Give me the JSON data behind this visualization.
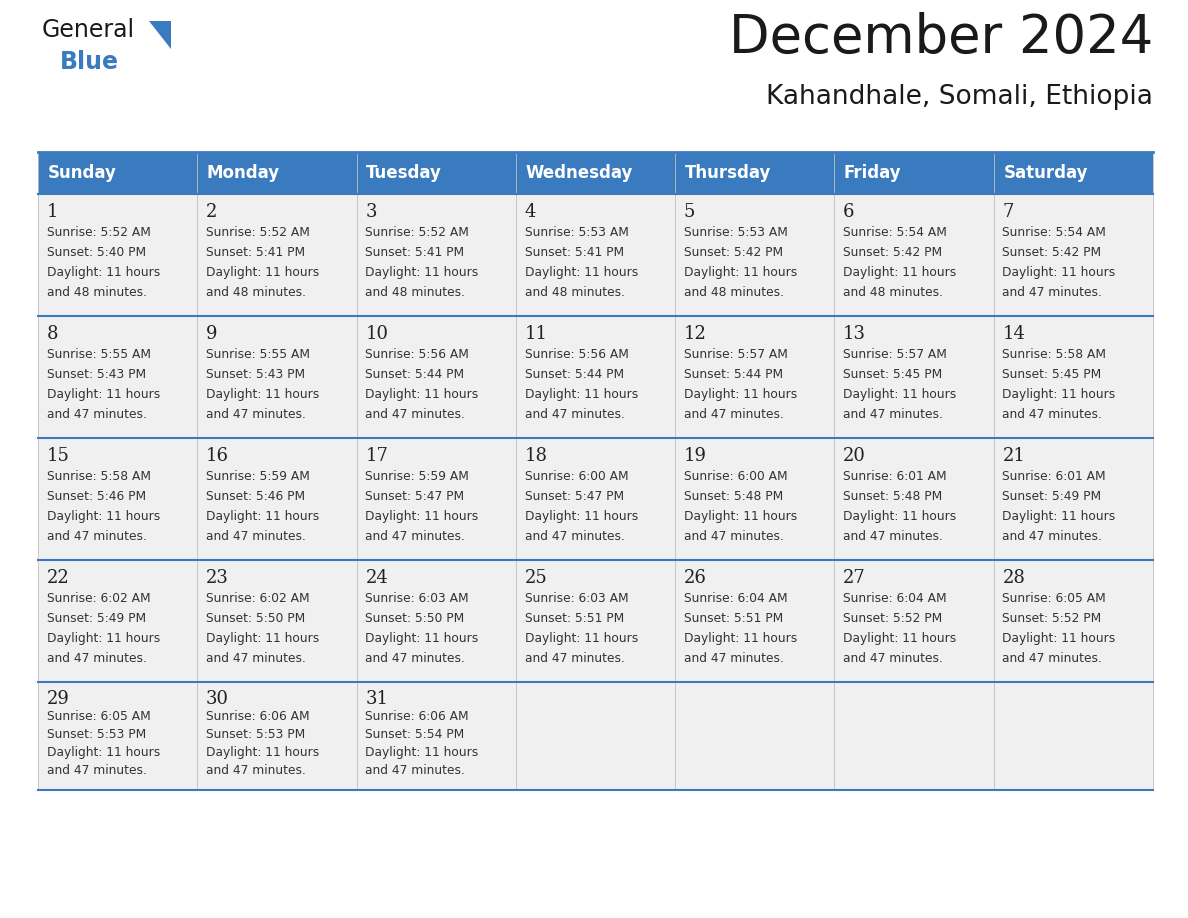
{
  "title": "December 2024",
  "subtitle": "Kahandhale, Somali, Ethiopia",
  "header_color": "#3a7abf",
  "header_text_color": "#ffffff",
  "cell_bg_color": "#f0f0f0",
  "border_color": "#3a7abf",
  "line_color": "#3a7abf",
  "text_color": "#333333",
  "day_num_color": "#222222",
  "days_of_week": [
    "Sunday",
    "Monday",
    "Tuesday",
    "Wednesday",
    "Thursday",
    "Friday",
    "Saturday"
  ],
  "calendar_data": [
    [
      {
        "day": 1,
        "sunrise": "5:52 AM",
        "sunset": "5:40 PM",
        "daylight": "11 hours and 48 minutes."
      },
      {
        "day": 2,
        "sunrise": "5:52 AM",
        "sunset": "5:41 PM",
        "daylight": "11 hours and 48 minutes."
      },
      {
        "day": 3,
        "sunrise": "5:52 AM",
        "sunset": "5:41 PM",
        "daylight": "11 hours and 48 minutes."
      },
      {
        "day": 4,
        "sunrise": "5:53 AM",
        "sunset": "5:41 PM",
        "daylight": "11 hours and 48 minutes."
      },
      {
        "day": 5,
        "sunrise": "5:53 AM",
        "sunset": "5:42 PM",
        "daylight": "11 hours and 48 minutes."
      },
      {
        "day": 6,
        "sunrise": "5:54 AM",
        "sunset": "5:42 PM",
        "daylight": "11 hours and 48 minutes."
      },
      {
        "day": 7,
        "sunrise": "5:54 AM",
        "sunset": "5:42 PM",
        "daylight": "11 hours and 47 minutes."
      }
    ],
    [
      {
        "day": 8,
        "sunrise": "5:55 AM",
        "sunset": "5:43 PM",
        "daylight": "11 hours and 47 minutes."
      },
      {
        "day": 9,
        "sunrise": "5:55 AM",
        "sunset": "5:43 PM",
        "daylight": "11 hours and 47 minutes."
      },
      {
        "day": 10,
        "sunrise": "5:56 AM",
        "sunset": "5:44 PM",
        "daylight": "11 hours and 47 minutes."
      },
      {
        "day": 11,
        "sunrise": "5:56 AM",
        "sunset": "5:44 PM",
        "daylight": "11 hours and 47 minutes."
      },
      {
        "day": 12,
        "sunrise": "5:57 AM",
        "sunset": "5:44 PM",
        "daylight": "11 hours and 47 minutes."
      },
      {
        "day": 13,
        "sunrise": "5:57 AM",
        "sunset": "5:45 PM",
        "daylight": "11 hours and 47 minutes."
      },
      {
        "day": 14,
        "sunrise": "5:58 AM",
        "sunset": "5:45 PM",
        "daylight": "11 hours and 47 minutes."
      }
    ],
    [
      {
        "day": 15,
        "sunrise": "5:58 AM",
        "sunset": "5:46 PM",
        "daylight": "11 hours and 47 minutes."
      },
      {
        "day": 16,
        "sunrise": "5:59 AM",
        "sunset": "5:46 PM",
        "daylight": "11 hours and 47 minutes."
      },
      {
        "day": 17,
        "sunrise": "5:59 AM",
        "sunset": "5:47 PM",
        "daylight": "11 hours and 47 minutes."
      },
      {
        "day": 18,
        "sunrise": "6:00 AM",
        "sunset": "5:47 PM",
        "daylight": "11 hours and 47 minutes."
      },
      {
        "day": 19,
        "sunrise": "6:00 AM",
        "sunset": "5:48 PM",
        "daylight": "11 hours and 47 minutes."
      },
      {
        "day": 20,
        "sunrise": "6:01 AM",
        "sunset": "5:48 PM",
        "daylight": "11 hours and 47 minutes."
      },
      {
        "day": 21,
        "sunrise": "6:01 AM",
        "sunset": "5:49 PM",
        "daylight": "11 hours and 47 minutes."
      }
    ],
    [
      {
        "day": 22,
        "sunrise": "6:02 AM",
        "sunset": "5:49 PM",
        "daylight": "11 hours and 47 minutes."
      },
      {
        "day": 23,
        "sunrise": "6:02 AM",
        "sunset": "5:50 PM",
        "daylight": "11 hours and 47 minutes."
      },
      {
        "day": 24,
        "sunrise": "6:03 AM",
        "sunset": "5:50 PM",
        "daylight": "11 hours and 47 minutes."
      },
      {
        "day": 25,
        "sunrise": "6:03 AM",
        "sunset": "5:51 PM",
        "daylight": "11 hours and 47 minutes."
      },
      {
        "day": 26,
        "sunrise": "6:04 AM",
        "sunset": "5:51 PM",
        "daylight": "11 hours and 47 minutes."
      },
      {
        "day": 27,
        "sunrise": "6:04 AM",
        "sunset": "5:52 PM",
        "daylight": "11 hours and 47 minutes."
      },
      {
        "day": 28,
        "sunrise": "6:05 AM",
        "sunset": "5:52 PM",
        "daylight": "11 hours and 47 minutes."
      }
    ],
    [
      {
        "day": 29,
        "sunrise": "6:05 AM",
        "sunset": "5:53 PM",
        "daylight": "11 hours and 47 minutes."
      },
      {
        "day": 30,
        "sunrise": "6:06 AM",
        "sunset": "5:53 PM",
        "daylight": "11 hours and 47 minutes."
      },
      {
        "day": 31,
        "sunrise": "6:06 AM",
        "sunset": "5:54 PM",
        "daylight": "11 hours and 47 minutes."
      },
      null,
      null,
      null,
      null
    ]
  ],
  "logo_general_color": "#1a1a1a",
  "logo_blue_color": "#3a7abf",
  "logo_triangle_color": "#3a7abf",
  "fig_width": 11.88,
  "fig_height": 9.18,
  "title_fontsize": 38,
  "subtitle_fontsize": 19,
  "header_fontsize": 12,
  "day_num_fontsize": 13,
  "info_fontsize": 8.8
}
